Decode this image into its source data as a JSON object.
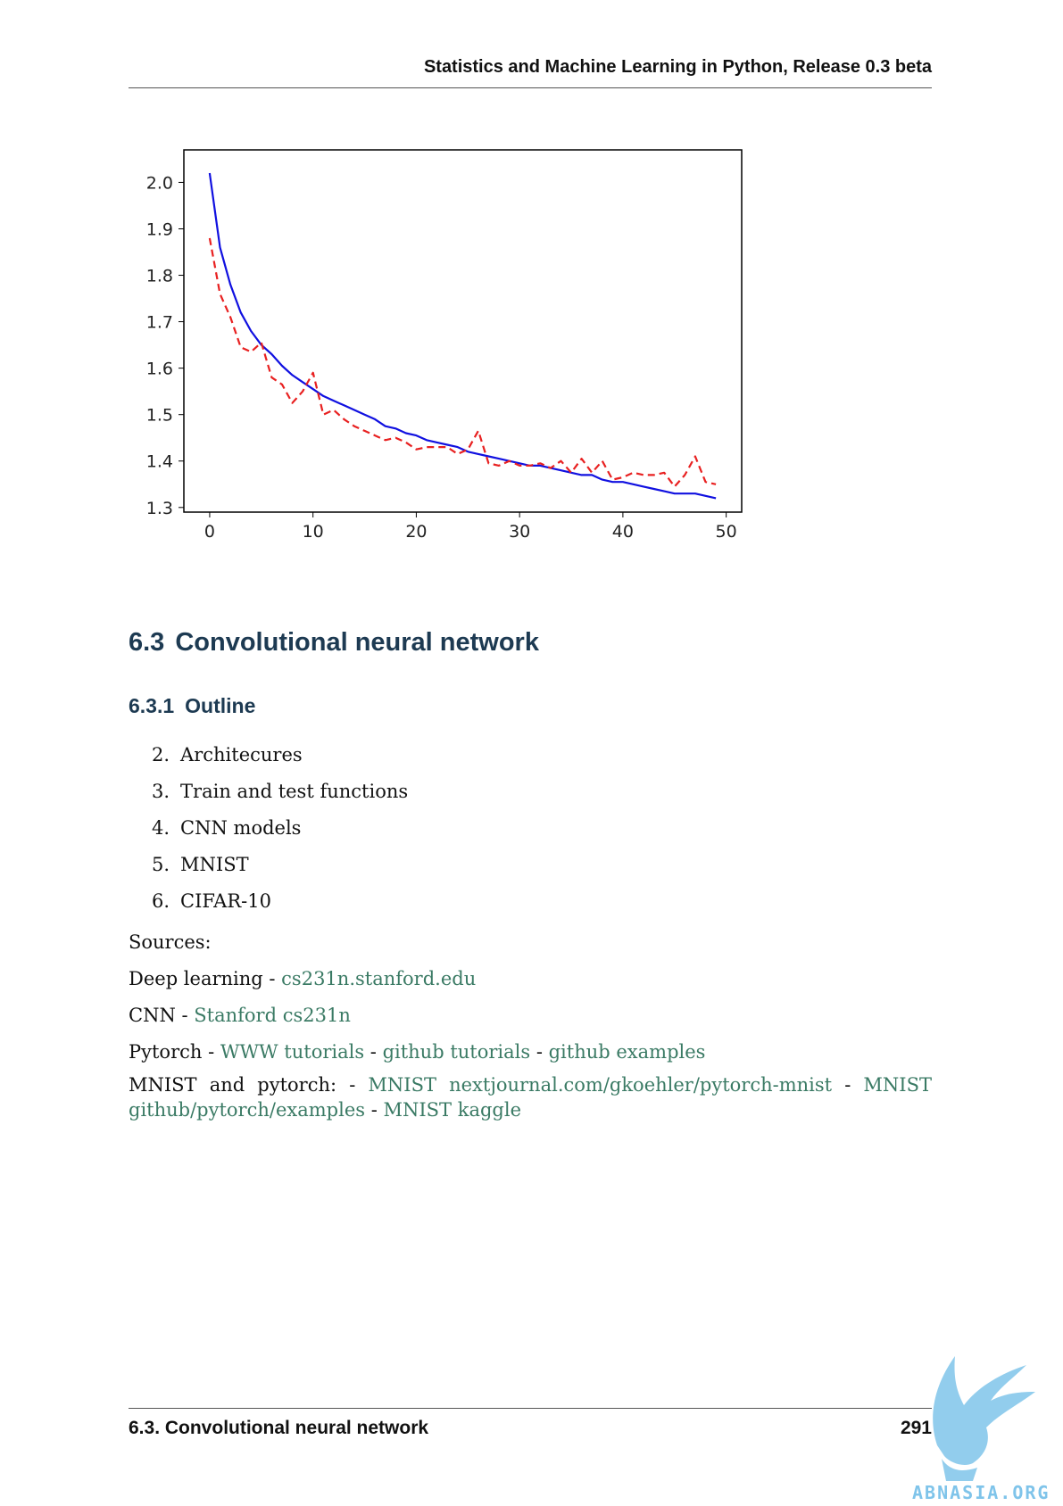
{
  "header": {
    "title": "Statistics and Machine Learning in Python, Release 0.3 beta"
  },
  "chart_data": {
    "type": "line",
    "xlim": [
      -2.5,
      51.5
    ],
    "ylim": [
      1.29,
      2.07
    ],
    "xticks": [
      0,
      10,
      20,
      30,
      40,
      50
    ],
    "yticks": [
      1.3,
      1.4,
      1.5,
      1.6,
      1.7,
      1.8,
      1.9,
      2.0
    ],
    "xtick_labels": [
      "0",
      "10",
      "20",
      "30",
      "40",
      "50"
    ],
    "ytick_labels": [
      "1.3",
      "1.4",
      "1.5",
      "1.6",
      "1.7",
      "1.8",
      "1.9",
      "2.0"
    ],
    "grid": false,
    "series": [
      {
        "color": "#1010e0",
        "style": "solid",
        "x": [
          0,
          1,
          2,
          3,
          4,
          5,
          6,
          7,
          8,
          9,
          10,
          11,
          12,
          13,
          14,
          15,
          16,
          17,
          18,
          19,
          20,
          21,
          22,
          23,
          24,
          25,
          26,
          27,
          28,
          29,
          30,
          31,
          32,
          33,
          34,
          35,
          36,
          37,
          38,
          39,
          40,
          41,
          42,
          43,
          44,
          45,
          46,
          47,
          48,
          49
        ],
        "values": [
          2.02,
          1.86,
          1.78,
          1.72,
          1.68,
          1.65,
          1.63,
          1.605,
          1.585,
          1.57,
          1.555,
          1.54,
          1.53,
          1.52,
          1.51,
          1.5,
          1.49,
          1.475,
          1.47,
          1.46,
          1.455,
          1.445,
          1.44,
          1.435,
          1.43,
          1.42,
          1.415,
          1.41,
          1.405,
          1.4,
          1.395,
          1.39,
          1.39,
          1.385,
          1.38,
          1.375,
          1.37,
          1.37,
          1.36,
          1.355,
          1.355,
          1.35,
          1.345,
          1.34,
          1.335,
          1.33,
          1.33,
          1.33,
          1.325,
          1.32
        ]
      },
      {
        "color": "#e82020",
        "style": "dashed",
        "x": [
          0,
          1,
          2,
          3,
          4,
          5,
          6,
          7,
          8,
          9,
          10,
          11,
          12,
          13,
          14,
          15,
          16,
          17,
          18,
          19,
          20,
          21,
          22,
          23,
          24,
          25,
          26,
          27,
          28,
          29,
          30,
          31,
          32,
          33,
          34,
          35,
          36,
          37,
          38,
          39,
          40,
          41,
          42,
          43,
          44,
          45,
          46,
          47,
          48,
          49
        ],
        "values": [
          1.88,
          1.76,
          1.71,
          1.645,
          1.635,
          1.655,
          1.58,
          1.565,
          1.525,
          1.55,
          1.59,
          1.5,
          1.51,
          1.49,
          1.475,
          1.465,
          1.455,
          1.445,
          1.45,
          1.44,
          1.425,
          1.43,
          1.43,
          1.43,
          1.415,
          1.425,
          1.465,
          1.395,
          1.39,
          1.4,
          1.39,
          1.39,
          1.395,
          1.385,
          1.4,
          1.375,
          1.405,
          1.375,
          1.4,
          1.36,
          1.365,
          1.375,
          1.37,
          1.37,
          1.375,
          1.345,
          1.37,
          1.41,
          1.355,
          1.35
        ]
      }
    ]
  },
  "section": {
    "number": "6.3",
    "title": "Convolutional neural network"
  },
  "subsection": {
    "number": "6.3.1",
    "title": "Outline"
  },
  "outline": [
    {
      "num": "2.",
      "text": "Architecures"
    },
    {
      "num": "3.",
      "text": "Train and test functions"
    },
    {
      "num": "4.",
      "text": "CNN models"
    },
    {
      "num": "5.",
      "text": "MNIST"
    },
    {
      "num": "6.",
      "text": "CIFAR-10"
    }
  ],
  "sources_label": "Sources:",
  "deep_learning": {
    "label": "Deep learning - ",
    "link": "cs231n.stanford.edu"
  },
  "cnn": {
    "label": "CNN - ",
    "link": "Stanford cs231n"
  },
  "pytorch": {
    "label": "Pytorch - ",
    "link1": "WWW tutorials",
    "sep": " - ",
    "link2": "github tutorials",
    "link3": "github examples"
  },
  "mnist": {
    "w1": "MNIST",
    "w2": "and",
    "w3": "pytorch:",
    "dash": "-",
    "link1": "MNIST",
    "link2": "nextjournal.com/gkoehler/pytorch-mnist",
    "link3": "MNIST",
    "link4": "github/pytorch/examples",
    "sep": " - ",
    "link5": "MNIST kaggle"
  },
  "footer": {
    "section": "6.3.  Convolutional neural network",
    "page": "291"
  },
  "watermark": {
    "text": "ABNASIA.ORG",
    "color": "#7fc4ea"
  }
}
